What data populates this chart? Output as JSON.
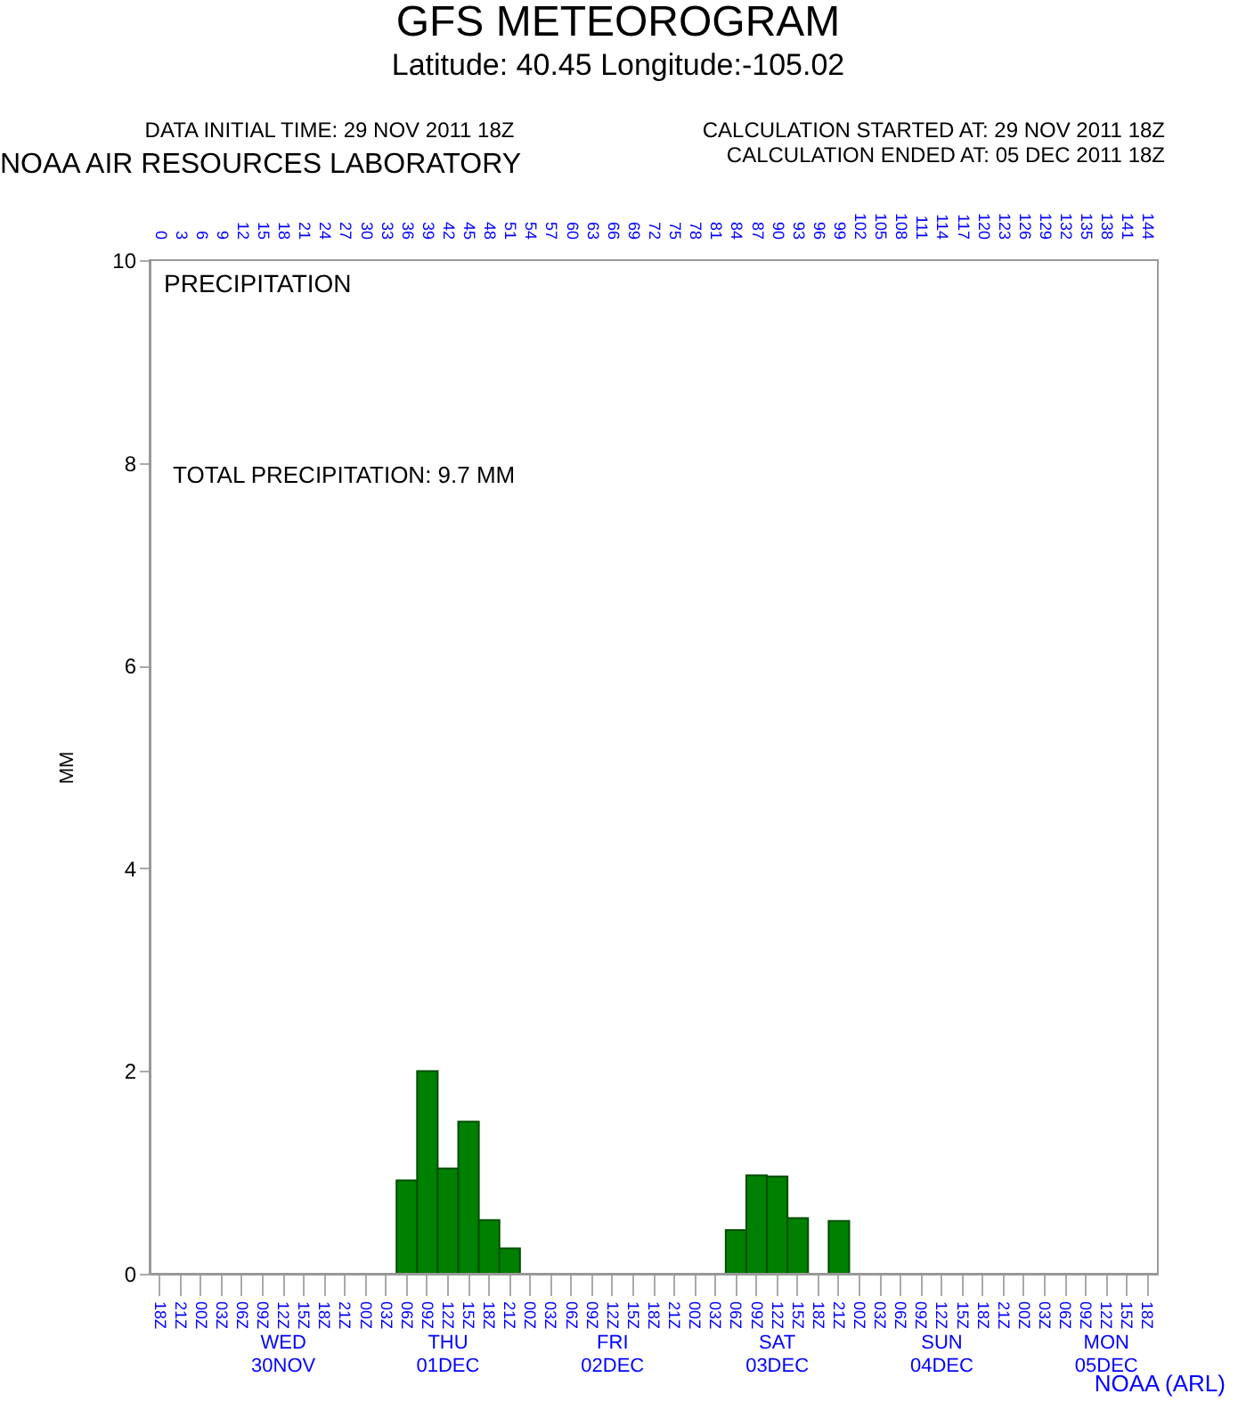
{
  "chart_data": {
    "type": "bar",
    "title": "GFS METEOROGRAM",
    "subtitle": "Latitude: 40.45 Longitude:-105.02",
    "ylabel": "MM",
    "categories": [
      "18Z",
      "21Z",
      "00Z",
      "03Z",
      "06Z",
      "09Z",
      "12Z",
      "15Z",
      "18Z",
      "21Z",
      "00Z",
      "03Z",
      "06Z",
      "09Z",
      "12Z",
      "15Z",
      "18Z",
      "21Z",
      "00Z",
      "03Z",
      "06Z",
      "09Z",
      "12Z",
      "15Z",
      "18Z",
      "21Z",
      "00Z",
      "03Z",
      "06Z",
      "09Z",
      "12Z",
      "15Z",
      "18Z",
      "21Z",
      "00Z",
      "03Z",
      "06Z",
      "09Z",
      "12Z",
      "15Z",
      "18Z",
      "21Z",
      "00Z",
      "03Z",
      "06Z",
      "09Z",
      "12Z",
      "15Z",
      "18Z"
    ],
    "values": [
      null,
      null,
      null,
      null,
      null,
      null,
      null,
      null,
      null,
      null,
      null,
      null,
      0.92,
      2.0,
      1.04,
      1.5,
      0.53,
      0.25,
      null,
      null,
      null,
      null,
      null,
      null,
      null,
      null,
      null,
      null,
      0.43,
      0.97,
      0.96,
      0.55,
      null,
      0.52,
      null,
      null,
      null,
      null,
      null,
      null,
      null,
      null,
      null,
      null,
      null,
      null,
      null,
      null,
      null
    ],
    "color": "#008000",
    "ylim": [
      0,
      10
    ],
    "yticks": [
      0,
      2,
      4,
      6,
      8,
      10
    ],
    "x2lim": [
      -1.5,
      145.5
    ],
    "x2ticks": [
      0,
      3,
      6,
      9,
      12,
      15,
      18,
      21,
      24,
      27,
      30,
      33,
      36,
      39,
      42,
      45,
      48,
      51,
      54,
      57,
      60,
      63,
      66,
      69,
      72,
      75,
      78,
      81,
      84,
      87,
      90,
      93,
      96,
      99,
      102,
      105,
      108,
      111,
      114,
      117,
      120,
      123,
      126,
      129,
      132,
      135,
      138,
      141,
      144
    ],
    "grid": false,
    "annotations": [
      "DATA INITIAL TIME: 29 NOV 2011 18Z",
      "CALCULATION STARTED AT: 29 NOV 2011 18Z",
      "CALCULATION ENDED AT: 05 DEC 2011 18Z",
      "NOAA AIR RESOURCES LABORATORY",
      "PRECIPITATION",
      "TOTAL PRECIPITATION:   9.7 MM",
      "NOAA (ARL)",
      "WED\n30NOV",
      "THU\n01DEC",
      "FRI\n02DEC",
      "SAT\n03DEC",
      "SUN\n04DEC",
      "MON\n05DEC"
    ]
  }
}
